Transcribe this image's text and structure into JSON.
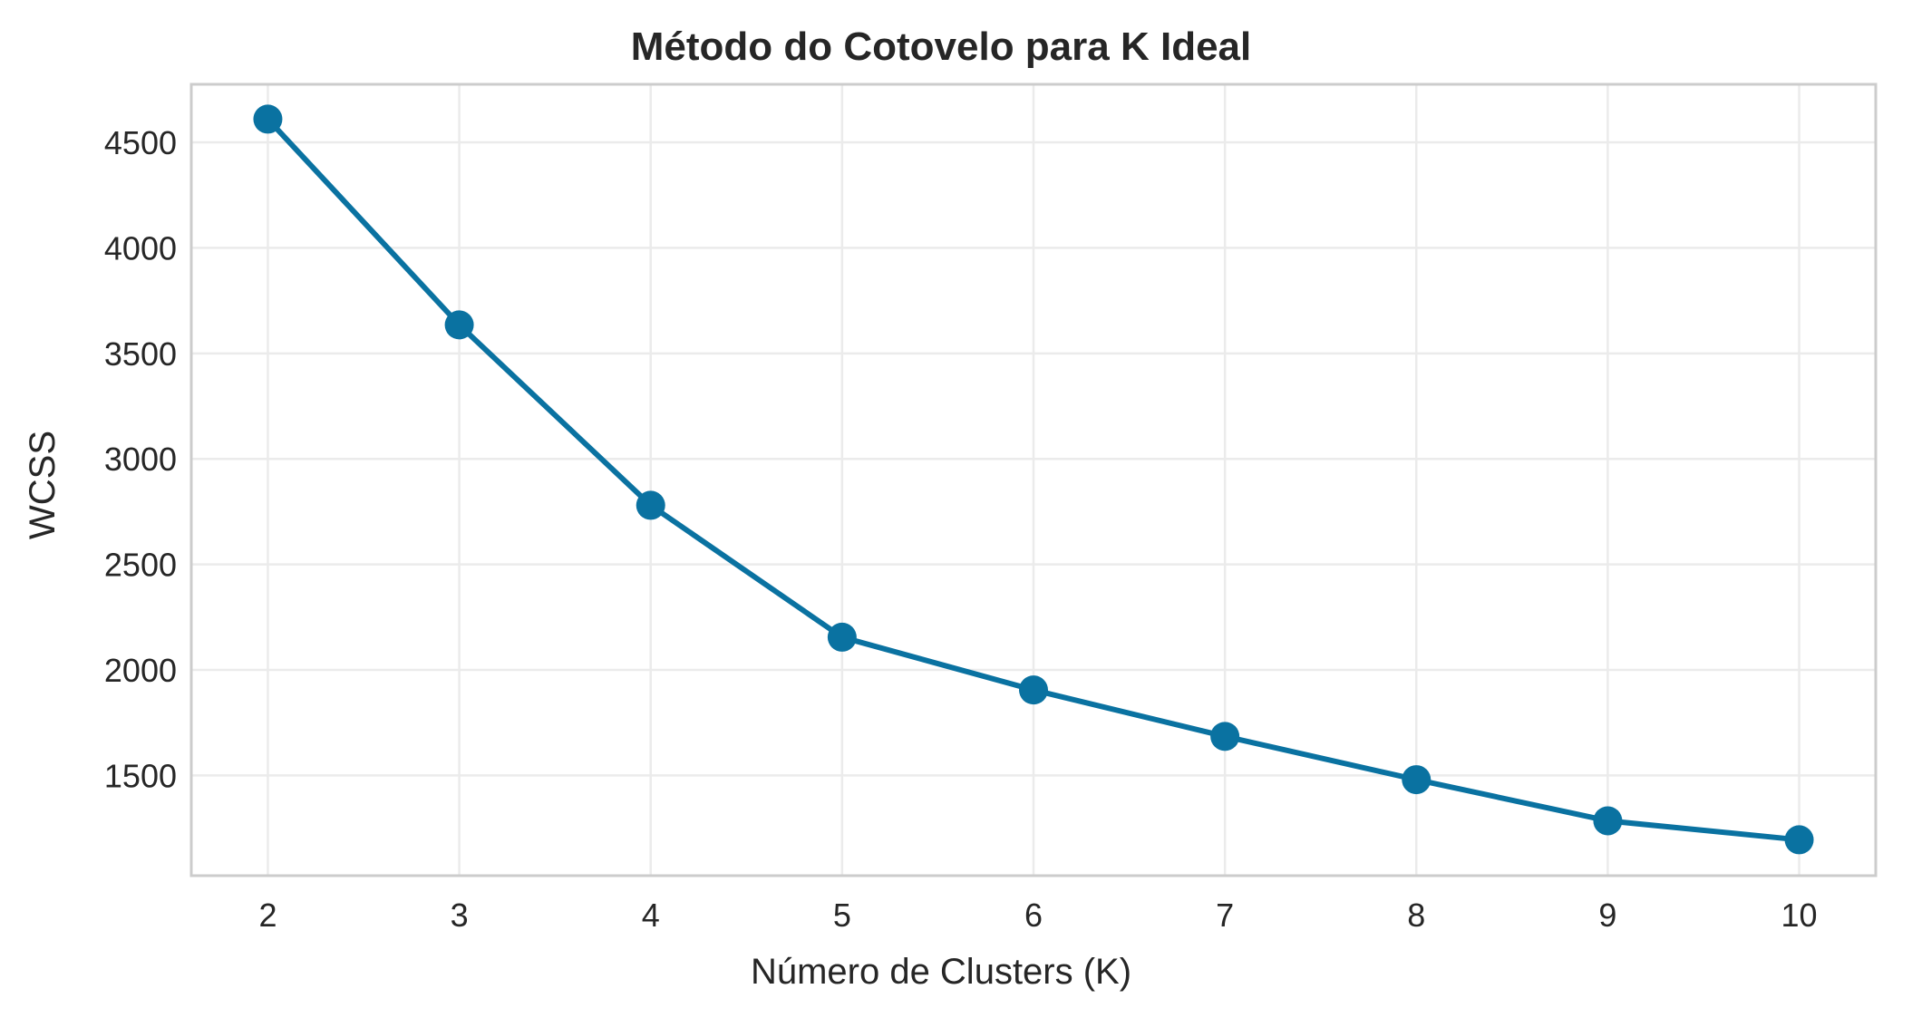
{
  "chart_data": {
    "type": "line",
    "title": "Método do Cotovelo para K Ideal",
    "xlabel": "Número de Clusters (K)",
    "ylabel": "WCSS",
    "x": [
      2,
      3,
      4,
      5,
      6,
      7,
      8,
      9,
      10
    ],
    "series": [
      {
        "values": [
          4610,
          3635,
          2780,
          2155,
          1905,
          1685,
          1480,
          1285,
          1195
        ]
      }
    ],
    "xlim": [
      1.6,
      10.4
    ],
    "ylim": [
      1025,
      4775
    ],
    "xticks": [
      2,
      3,
      4,
      5,
      6,
      7,
      8,
      9,
      10
    ],
    "yticks": [
      1500,
      2000,
      2500,
      3000,
      3500,
      4000,
      4500
    ],
    "grid": true,
    "legend": "none",
    "colors": {
      "line": "#0a72a1",
      "marker": "#0a72a1",
      "grid": "#ebebeb",
      "frame": "#cccccc",
      "text": "#262626"
    }
  }
}
